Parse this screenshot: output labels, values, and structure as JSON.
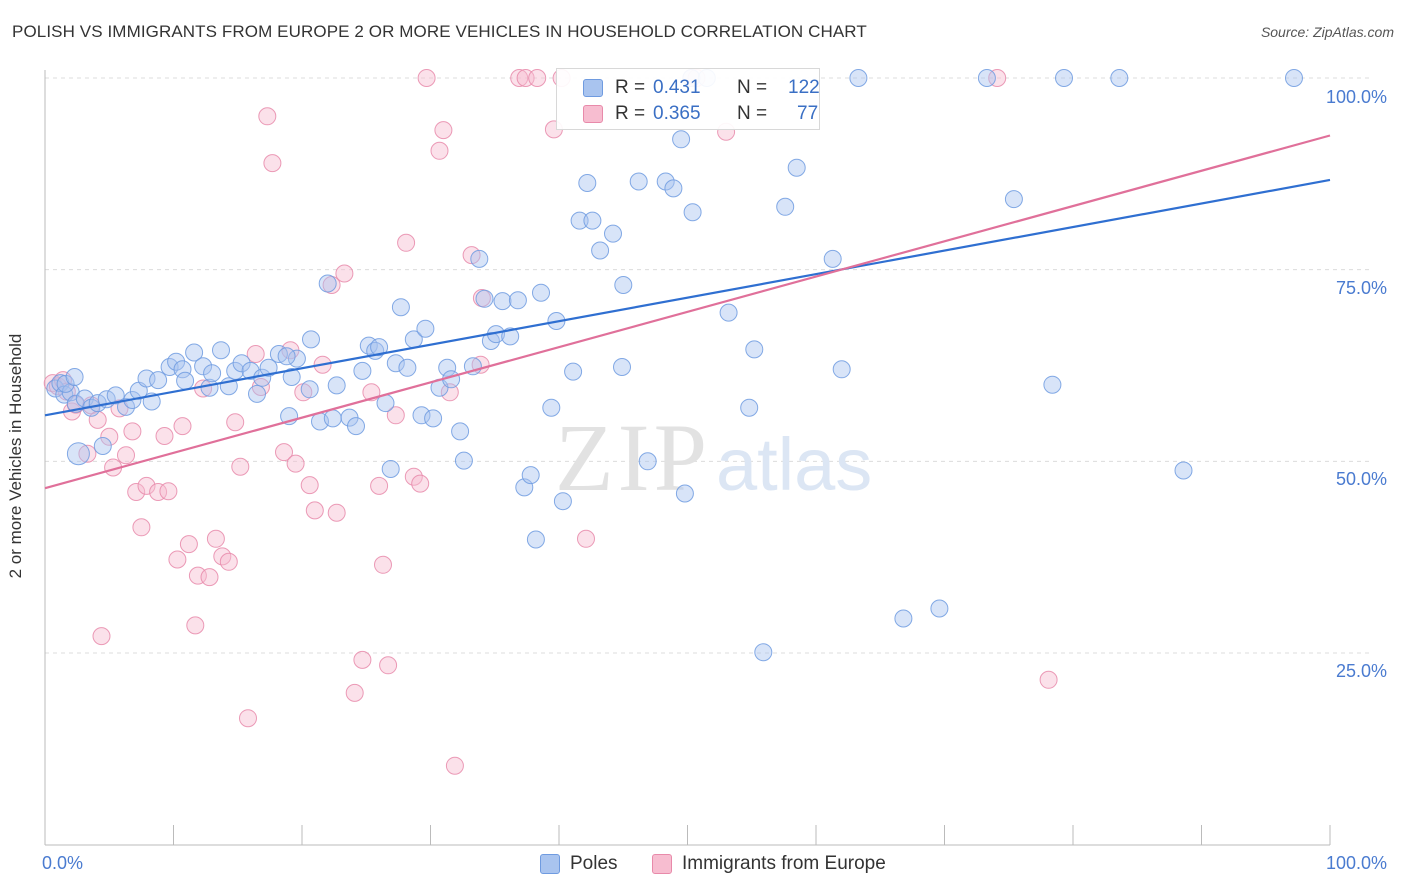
{
  "title": "POLISH VS IMMIGRANTS FROM EUROPE 2 OR MORE VEHICLES IN HOUSEHOLD CORRELATION CHART",
  "source": "Source: ZipAtlas.com",
  "watermark": {
    "zip": "ZIP",
    "atlas": "atlas"
  },
  "legend": {
    "rows": [
      {
        "r_label": "R =",
        "r_value": "0.431",
        "n_label": "N =",
        "n_value": "122",
        "color": "#a9c4ef",
        "stroke": "#6f9be0"
      },
      {
        "r_label": "R =",
        "r_value": "0.365",
        "n_label": "N =",
        "n_value": "77",
        "color": "#f7bdd0",
        "stroke": "#e88aaa"
      }
    ]
  },
  "bottom_legend": [
    {
      "label": "Poles",
      "color": "#a9c4ef",
      "stroke": "#6f9be0"
    },
    {
      "label": "Immigrants from Europe",
      "color": "#f7bdd0",
      "stroke": "#e88aaa"
    }
  ],
  "chart_data": {
    "type": "scatter",
    "title": "POLISH VS IMMIGRANTS FROM EUROPE 2 OR MORE VEHICLES IN HOUSEHOLD CORRELATION CHART",
    "xlabel": "",
    "ylabel": "2 or more Vehicles in Household",
    "xlim": [
      0,
      100
    ],
    "ylim": [
      0,
      102
    ],
    "x_tick_labels": [
      "0.0%",
      "100.0%"
    ],
    "y_tick_labels": [
      "25.0%",
      "50.0%",
      "75.0%",
      "100.0%"
    ],
    "y_ticks": [
      25,
      50,
      75,
      100
    ],
    "grid": "horizontal dashed",
    "legend_position": "top-center",
    "series": [
      {
        "name": "Poles",
        "color": "#6f9be0",
        "fill": "#a9c4ef",
        "trend": {
          "x": [
            0,
            100
          ],
          "y": [
            56.0,
            86.7
          ],
          "color": "#2f6fd1"
        },
        "points": [
          [
            0.8,
            59.5
          ],
          [
            1.2,
            60.2
          ],
          [
            1.5,
            58.7
          ],
          [
            2.0,
            59.0
          ],
          [
            2.4,
            57.5
          ],
          [
            2.6,
            51.0
          ],
          [
            3.1,
            58.2
          ],
          [
            3.6,
            57.0
          ],
          [
            4.1,
            57.6
          ],
          [
            4.5,
            52.0
          ],
          [
            4.8,
            58.1
          ],
          [
            5.5,
            58.6
          ],
          [
            6.3,
            57.1
          ],
          [
            6.8,
            58.0
          ],
          [
            7.3,
            59.2
          ],
          [
            7.9,
            60.8
          ],
          [
            8.3,
            57.8
          ],
          [
            8.8,
            60.6
          ],
          [
            9.7,
            62.3
          ],
          [
            10.2,
            63.0
          ],
          [
            10.7,
            62.0
          ],
          [
            10.9,
            60.5
          ],
          [
            11.6,
            64.2
          ],
          [
            12.3,
            62.4
          ],
          [
            12.8,
            59.6
          ],
          [
            13.0,
            61.5
          ],
          [
            13.7,
            64.5
          ],
          [
            14.3,
            59.8
          ],
          [
            14.8,
            61.8
          ],
          [
            15.3,
            62.8
          ],
          [
            16.0,
            61.8
          ],
          [
            16.5,
            58.8
          ],
          [
            16.9,
            60.9
          ],
          [
            17.4,
            62.2
          ],
          [
            18.2,
            64.0
          ],
          [
            19.0,
            55.9
          ],
          [
            19.2,
            61.0
          ],
          [
            19.6,
            63.4
          ],
          [
            20.6,
            59.4
          ],
          [
            20.7,
            65.9
          ],
          [
            21.4,
            55.2
          ],
          [
            22.0,
            73.2
          ],
          [
            22.4,
            55.6
          ],
          [
            22.7,
            59.9
          ],
          [
            23.7,
            55.7
          ],
          [
            24.2,
            54.6
          ],
          [
            24.7,
            61.8
          ],
          [
            25.2,
            65.1
          ],
          [
            25.7,
            64.4
          ],
          [
            26.0,
            64.9
          ],
          [
            26.5,
            57.6
          ],
          [
            26.9,
            49.0
          ],
          [
            27.3,
            62.8
          ],
          [
            27.7,
            70.1
          ],
          [
            28.2,
            62.2
          ],
          [
            28.7,
            65.9
          ],
          [
            29.3,
            56.0
          ],
          [
            29.6,
            67.3
          ],
          [
            30.2,
            55.6
          ],
          [
            30.7,
            59.6
          ],
          [
            31.3,
            62.2
          ],
          [
            31.6,
            60.7
          ],
          [
            32.3,
            53.9
          ],
          [
            32.6,
            50.1
          ],
          [
            33.3,
            62.4
          ],
          [
            33.8,
            76.4
          ],
          [
            34.2,
            71.2
          ],
          [
            34.7,
            65.7
          ],
          [
            35.1,
            66.6
          ],
          [
            35.6,
            70.9
          ],
          [
            36.2,
            66.3
          ],
          [
            36.8,
            71.0
          ],
          [
            37.3,
            46.6
          ],
          [
            37.8,
            48.2
          ],
          [
            38.2,
            39.8
          ],
          [
            38.6,
            72.0
          ],
          [
            39.4,
            57.0
          ],
          [
            39.8,
            68.3
          ],
          [
            40.3,
            44.8
          ],
          [
            41.1,
            61.7
          ],
          [
            41.6,
            81.4
          ],
          [
            42.2,
            86.3
          ],
          [
            42.6,
            81.4
          ],
          [
            43.2,
            77.5
          ],
          [
            44.2,
            79.7
          ],
          [
            44.9,
            62.3
          ],
          [
            45.0,
            73.0
          ],
          [
            46.2,
            86.5
          ],
          [
            46.9,
            50.0
          ],
          [
            48.3,
            86.5
          ],
          [
            48.9,
            85.6
          ],
          [
            49.5,
            92.0
          ],
          [
            49.8,
            45.8
          ],
          [
            50.4,
            82.5
          ],
          [
            50.3,
            100.0
          ],
          [
            51.5,
            100.0
          ],
          [
            53.2,
            69.4
          ],
          [
            54.8,
            57.0
          ],
          [
            55.2,
            64.6
          ],
          [
            55.9,
            25.1
          ],
          [
            57.6,
            83.2
          ],
          [
            58.5,
            88.3
          ],
          [
            61.3,
            76.4
          ],
          [
            62.0,
            62.0
          ],
          [
            63.3,
            100.0
          ],
          [
            66.8,
            29.5
          ],
          [
            69.6,
            30.8
          ],
          [
            73.3,
            100.0
          ],
          [
            75.4,
            84.2
          ],
          [
            78.4,
            60.0
          ],
          [
            79.3,
            100.0
          ],
          [
            83.6,
            100.0
          ],
          [
            88.6,
            48.8
          ],
          [
            97.2,
            100.0
          ],
          [
            1.6,
            60.1
          ],
          [
            2.3,
            61.0
          ],
          [
            18.8,
            63.7
          ]
        ]
      },
      {
        "name": "Immigrants from Europe",
        "color": "#e88aaa",
        "fill": "#f7bdd0",
        "trend": {
          "x": [
            0,
            100
          ],
          "y": [
            46.5,
            92.5
          ],
          "color": "#e0709a"
        },
        "points": [
          [
            0.6,
            60.2
          ],
          [
            1.0,
            59.8
          ],
          [
            1.4,
            60.6
          ],
          [
            1.7,
            59.1
          ],
          [
            2.1,
            56.5
          ],
          [
            2.4,
            57.4
          ],
          [
            3.3,
            51.0
          ],
          [
            3.6,
            57.3
          ],
          [
            4.1,
            55.4
          ],
          [
            4.4,
            27.2
          ],
          [
            5.0,
            53.2
          ],
          [
            5.3,
            49.2
          ],
          [
            5.8,
            56.9
          ],
          [
            6.3,
            50.8
          ],
          [
            6.8,
            53.9
          ],
          [
            7.1,
            46.0
          ],
          [
            7.5,
            41.4
          ],
          [
            7.9,
            46.8
          ],
          [
            8.8,
            46.0
          ],
          [
            9.3,
            53.3
          ],
          [
            9.6,
            46.1
          ],
          [
            10.3,
            37.2
          ],
          [
            10.7,
            54.6
          ],
          [
            11.2,
            39.2
          ],
          [
            11.7,
            28.6
          ],
          [
            11.9,
            35.1
          ],
          [
            12.3,
            59.5
          ],
          [
            12.8,
            34.9
          ],
          [
            13.3,
            39.9
          ],
          [
            13.8,
            37.6
          ],
          [
            14.3,
            36.9
          ],
          [
            14.8,
            55.1
          ],
          [
            15.2,
            49.3
          ],
          [
            15.8,
            16.5
          ],
          [
            16.4,
            64.0
          ],
          [
            16.8,
            59.7
          ],
          [
            17.3,
            95.0
          ],
          [
            17.7,
            88.9
          ],
          [
            18.6,
            51.2
          ],
          [
            19.1,
            64.5
          ],
          [
            19.5,
            49.7
          ],
          [
            20.1,
            59.0
          ],
          [
            20.6,
            46.9
          ],
          [
            21.0,
            43.6
          ],
          [
            21.6,
            62.6
          ],
          [
            22.3,
            73.0
          ],
          [
            22.7,
            43.3
          ],
          [
            23.3,
            74.5
          ],
          [
            24.1,
            19.8
          ],
          [
            24.7,
            24.1
          ],
          [
            25.4,
            59.0
          ],
          [
            26.0,
            46.8
          ],
          [
            26.3,
            36.5
          ],
          [
            26.7,
            23.4
          ],
          [
            27.3,
            56.0
          ],
          [
            28.1,
            78.5
          ],
          [
            28.7,
            48.0
          ],
          [
            29.2,
            47.1
          ],
          [
            29.7,
            100.0
          ],
          [
            30.7,
            90.5
          ],
          [
            31.0,
            93.2
          ],
          [
            31.5,
            59.0
          ],
          [
            31.9,
            10.3
          ],
          [
            33.2,
            76.9
          ],
          [
            34.0,
            71.3
          ],
          [
            36.9,
            100.0
          ],
          [
            37.4,
            100.0
          ],
          [
            38.3,
            100.0
          ],
          [
            39.6,
            93.3
          ],
          [
            40.2,
            100.0
          ],
          [
            42.1,
            39.9
          ],
          [
            50.3,
            100.0
          ],
          [
            50.7,
            100.0
          ],
          [
            53.0,
            93.0
          ],
          [
            74.1,
            100.0
          ],
          [
            78.1,
            21.5
          ],
          [
            33.9,
            62.6
          ]
        ]
      }
    ]
  }
}
